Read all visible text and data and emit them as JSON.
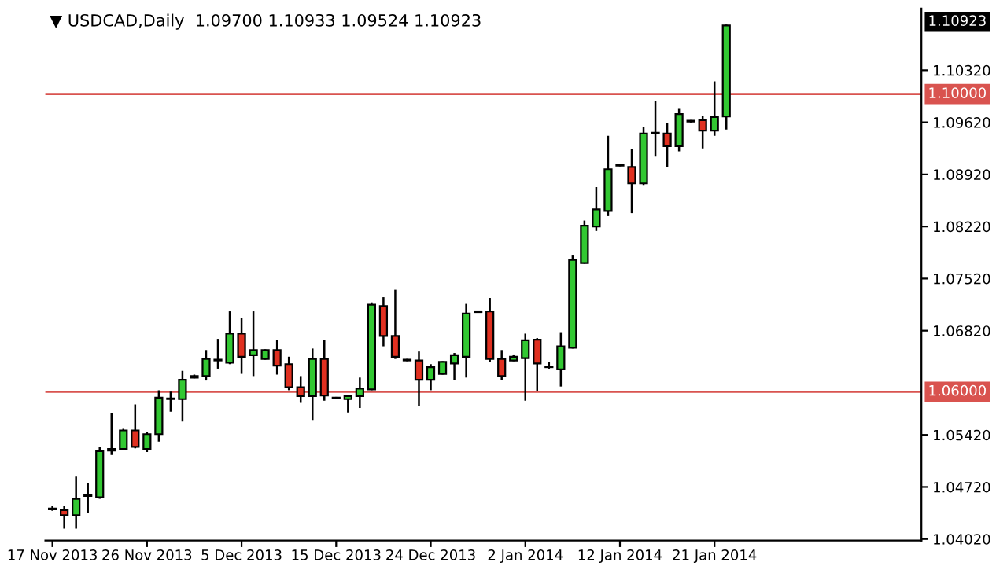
{
  "chart_data": {
    "type": "candlestick",
    "title": "▼ USDCAD,Daily  1.09700 1.10933 1.09524 1.10923",
    "categories": [
      "17 Nov 2013",
      null,
      null,
      null,
      null,
      null,
      null,
      null,
      "26 Nov 2013",
      null,
      null,
      null,
      null,
      null,
      null,
      null,
      "5 Dec 2013",
      null,
      null,
      null,
      null,
      null,
      null,
      null,
      "15 Dec 2013",
      null,
      null,
      null,
      null,
      null,
      null,
      null,
      "24 Dec 2013",
      null,
      null,
      null,
      null,
      null,
      null,
      null,
      "2 Jan 2014",
      null,
      null,
      null,
      null,
      null,
      null,
      null,
      "12 Jan 2014",
      null,
      null,
      null,
      null,
      null,
      null,
      null,
      "21 Jan 2014",
      null,
      null,
      null,
      null,
      null,
      null,
      null,
      null,
      null,
      null,
      null,
      null,
      null,
      null,
      null,
      null,
      null
    ],
    "ohlc": [
      [
        1.0442,
        1.0446,
        1.044,
        1.0443
      ],
      [
        1.0441,
        1.0446,
        1.0416,
        1.0434
      ],
      [
        1.0434,
        1.0486,
        1.0416,
        1.0456
      ],
      [
        1.046,
        1.0477,
        1.0437,
        1.0461
      ],
      [
        1.0458,
        1.0526,
        1.0456,
        1.052
      ],
      [
        1.0521,
        1.0571,
        1.0515,
        1.0523
      ],
      [
        1.0523,
        1.055,
        1.0522,
        1.0548
      ],
      [
        1.0548,
        1.0583,
        1.0524,
        1.0526
      ],
      [
        1.0523,
        1.0546,
        1.0519,
        1.0543
      ],
      [
        1.0543,
        1.0602,
        1.0533,
        1.0592
      ],
      [
        1.059,
        1.06,
        1.0573,
        1.0591
      ],
      [
        1.059,
        1.0628,
        1.056,
        1.0616
      ],
      [
        1.0619,
        1.0623,
        1.0618,
        1.0621
      ],
      [
        1.0621,
        1.0656,
        1.0615,
        1.0644
      ],
      [
        1.0642,
        1.0671,
        1.0631,
        1.0643
      ],
      [
        1.0639,
        1.0708,
        1.0637,
        1.0678
      ],
      [
        1.0678,
        1.0699,
        1.0624,
        1.0647
      ],
      [
        1.0649,
        1.0708,
        1.0621,
        1.0656
      ],
      [
        1.0644,
        1.0657,
        1.0643,
        1.0656
      ],
      [
        1.0656,
        1.067,
        1.0623,
        1.0635
      ],
      [
        1.0637,
        1.0647,
        1.0602,
        1.0606
      ],
      [
        1.0606,
        1.0621,
        1.0585,
        1.0594
      ],
      [
        1.0594,
        1.0658,
        1.0562,
        1.0644
      ],
      [
        1.0644,
        1.067,
        1.0588,
        1.0595
      ],
      [
        1.0591,
        1.0593,
        1.059,
        1.0592
      ],
      [
        1.059,
        1.0596,
        1.0572,
        1.0594
      ],
      [
        1.0594,
        1.0619,
        1.0578,
        1.0604
      ],
      [
        1.0603,
        1.072,
        1.0602,
        1.0717
      ],
      [
        1.0715,
        1.0727,
        1.0661,
        1.0675
      ],
      [
        1.0675,
        1.0737,
        1.0644,
        1.0647
      ],
      [
        1.0642,
        1.0644,
        1.0641,
        1.0643
      ],
      [
        1.0642,
        1.0654,
        1.0581,
        1.0616
      ],
      [
        1.0616,
        1.0637,
        1.0602,
        1.0633
      ],
      [
        1.0624,
        1.0641,
        1.0623,
        1.064
      ],
      [
        1.0638,
        1.0652,
        1.0616,
        1.0649
      ],
      [
        1.0647,
        1.0718,
        1.0619,
        1.0705
      ],
      [
        1.0707,
        1.0709,
        1.0706,
        1.0708
      ],
      [
        1.0708,
        1.0726,
        1.064,
        1.0644
      ],
      [
        1.0644,
        1.0656,
        1.0616,
        1.0621
      ],
      [
        1.0642,
        1.065,
        1.0641,
        1.0647
      ],
      [
        1.0645,
        1.0678,
        1.0588,
        1.0669
      ],
      [
        1.067,
        1.0672,
        1.0601,
        1.0638
      ],
      [
        1.0633,
        1.064,
        1.0631,
        1.0634
      ],
      [
        1.063,
        1.068,
        1.0607,
        1.0661
      ],
      [
        1.0659,
        1.0783,
        1.0658,
        1.0777
      ],
      [
        1.0773,
        1.083,
        1.0772,
        1.0823
      ],
      [
        1.0822,
        1.0875,
        1.0816,
        1.0845
      ],
      [
        1.0843,
        1.0944,
        1.0836,
        1.0899
      ],
      [
        1.0904,
        1.0906,
        1.0903,
        1.0905
      ],
      [
        1.0902,
        1.0926,
        1.084,
        1.088
      ],
      [
        1.088,
        1.0956,
        1.0878,
        1.0947
      ],
      [
        1.0947,
        1.0991,
        1.0916,
        1.0948
      ],
      [
        1.0947,
        1.0961,
        1.0902,
        1.093
      ],
      [
        1.093,
        1.098,
        1.0923,
        1.0973
      ],
      [
        1.0963,
        1.0965,
        1.0962,
        1.0964
      ],
      [
        1.0965,
        1.0971,
        1.0927,
        1.0951
      ],
      [
        1.0951,
        1.1017,
        1.0944,
        1.0969
      ],
      [
        1.097,
        1.10933,
        1.09524,
        1.10923
      ],
      null,
      null,
      null,
      null,
      null,
      null,
      null,
      null,
      null,
      null,
      null,
      null,
      null,
      null,
      null,
      null
    ],
    "colors": [
      "#32c832",
      "#e03020",
      "#32c832",
      "#32c832",
      "#32c832",
      "#32c832",
      "#32c832",
      "#e03020",
      "#32c832",
      "#32c832",
      "#32c832",
      "#32c832",
      "#32c832",
      "#32c832",
      "#32c832",
      "#32c832",
      "#e03020",
      "#32c832",
      "#32c832",
      "#e03020",
      "#e03020",
      "#e03020",
      "#32c832",
      "#e03020",
      "#32c832",
      "#32c832",
      "#32c832",
      "#32c832",
      "#e03020",
      "#e03020",
      "#32c832",
      "#e03020",
      "#32c832",
      "#32c832",
      "#32c832",
      "#32c832",
      "#32c832",
      "#e03020",
      "#e03020",
      "#32c832",
      "#32c832",
      "#e03020",
      "#32c832",
      "#32c832",
      "#32c832",
      "#32c832",
      "#32c832",
      "#32c832",
      "#32c832",
      "#e03020",
      "#32c832",
      "#32c832",
      "#e03020",
      "#32c832",
      "#32c832",
      "#e03020",
      "#32c832",
      "#32c832",
      null,
      null,
      null,
      null,
      null,
      null,
      null,
      null,
      null,
      null,
      null,
      null,
      null,
      null,
      null,
      null
    ],
    "ylim": [
      1.04,
      1.1115
    ],
    "yticks": [
      {
        "value": 1.0402,
        "label": "1.04020"
      },
      {
        "value": 1.0472,
        "label": "1.04720"
      },
      {
        "value": 1.0542,
        "label": "1.05420"
      },
      {
        "value": 1.0682,
        "label": "1.06820"
      },
      {
        "value": 1.0752,
        "label": "1.07520"
      },
      {
        "value": 1.0822,
        "label": "1.08220"
      },
      {
        "value": 1.0892,
        "label": "1.08920"
      },
      {
        "value": 1.0962,
        "label": "1.09620"
      },
      {
        "value": 1.1032,
        "label": "1.10320"
      }
    ],
    "ref_lines": [
      {
        "axis": "y",
        "value": 1.06,
        "label": "1.06000",
        "color": "#d9534f"
      },
      {
        "axis": "y",
        "value": 1.1,
        "label": "1.10000",
        "color": "#d9534f"
      }
    ],
    "annotations": [
      "1.10923"
    ],
    "grid": false,
    "legend": false
  }
}
